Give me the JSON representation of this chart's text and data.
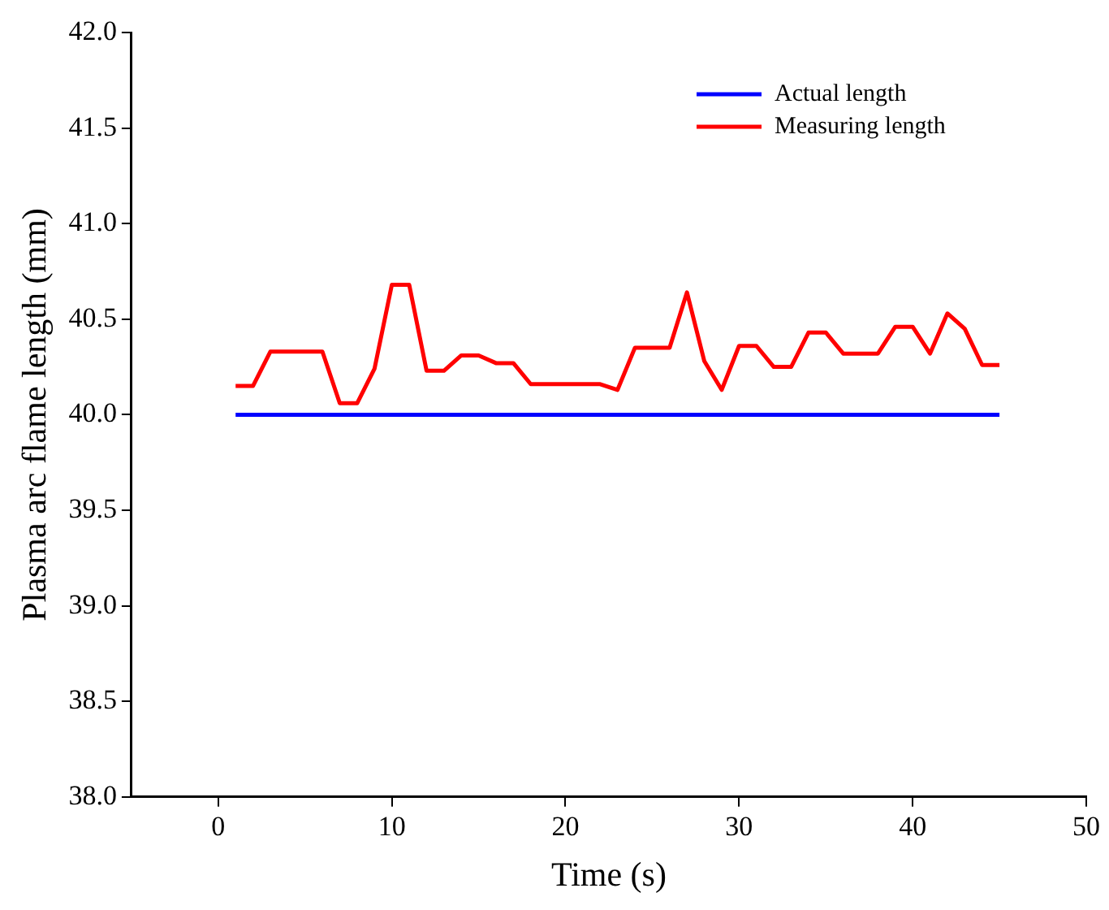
{
  "chart_data": {
    "type": "line",
    "xlabel": "Time (s)",
    "ylabel": "Plasma arc flame length (mm)",
    "x": [
      1,
      2,
      3,
      4,
      5,
      6,
      7,
      8,
      9,
      10,
      11,
      12,
      13,
      14,
      15,
      16,
      17,
      18,
      19,
      20,
      21,
      22,
      23,
      24,
      25,
      26,
      27,
      28,
      29,
      30,
      31,
      32,
      33,
      34,
      35,
      36,
      37,
      38,
      39,
      40,
      41,
      42,
      43,
      44,
      45
    ],
    "series": [
      {
        "name": "Actual length",
        "color": "#0000ff",
        "values": [
          40,
          40,
          40,
          40,
          40,
          40,
          40,
          40,
          40,
          40,
          40,
          40,
          40,
          40,
          40,
          40,
          40,
          40,
          40,
          40,
          40,
          40,
          40,
          40,
          40,
          40,
          40,
          40,
          40,
          40,
          40,
          40,
          40,
          40,
          40,
          40,
          40,
          40,
          40,
          40,
          40,
          40,
          40,
          40,
          40
        ]
      },
      {
        "name": "Measuring length",
        "color": "#ff0000",
        "values": [
          40.15,
          40.15,
          40.33,
          40.33,
          40.33,
          40.33,
          40.06,
          40.06,
          40.24,
          40.68,
          40.68,
          40.23,
          40.23,
          40.31,
          40.31,
          40.27,
          40.27,
          40.16,
          40.16,
          40.16,
          40.16,
          40.16,
          40.13,
          40.35,
          40.35,
          40.35,
          40.64,
          40.28,
          40.13,
          40.36,
          40.36,
          40.25,
          40.25,
          40.43,
          40.43,
          40.32,
          40.32,
          40.32,
          40.46,
          40.46,
          40.32,
          40.53,
          40.45,
          40.26,
          40.26
        ]
      }
    ],
    "xlim": [
      -5,
      50
    ],
    "xticks": [
      0,
      10,
      20,
      30,
      40,
      50
    ],
    "ylim": [
      38,
      42
    ],
    "yticks": [
      {
        "value": 38,
        "label": "38.0"
      },
      {
        "value": 38.5,
        "label": "38.5"
      },
      {
        "value": 39,
        "label": "39.0"
      },
      {
        "value": 39.5,
        "label": "39.5"
      },
      {
        "value": 40,
        "label": "40.0"
      },
      {
        "value": 40.5,
        "label": "40.5"
      },
      {
        "value": 41,
        "label": "41.0"
      },
      {
        "value": 41.5,
        "label": "41.5"
      },
      {
        "value": 42,
        "label": "42.0"
      }
    ],
    "grid": false,
    "legend": "top right",
    "marker": "none",
    "line_style": "solid"
  }
}
